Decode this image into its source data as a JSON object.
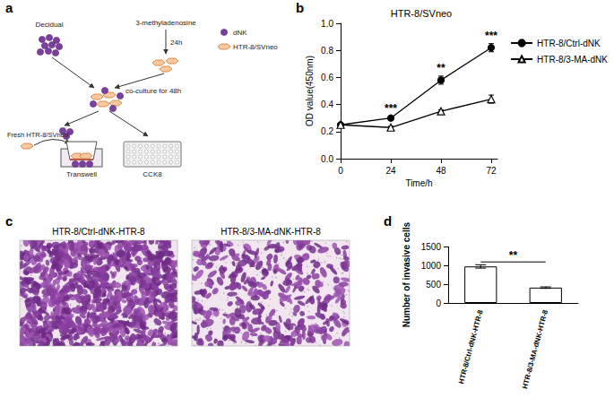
{
  "panel_labels": [
    "a",
    "b",
    "c",
    "d"
  ],
  "diagram": {
    "decidual": "Decidual",
    "drug": "3-methyladenosine",
    "drug_time": "24h",
    "coculture": "co-culture for 48h",
    "fresh": "Fresh HTR-8/SVneo",
    "transwell": "Transwell",
    "cck8": "CCK8",
    "legend": [
      "dNK",
      "HTR-8/SVneo"
    ]
  },
  "images": [
    {
      "title": "HTR-8/Ctrl-dNK-HTR-8"
    },
    {
      "title": "HTR-8/3-MA-dNK-HTR-8"
    }
  ],
  "chart_data": [
    {
      "type": "line",
      "title": "HTR-8/SVneo",
      "x_label": "Time/h",
      "y_label": "OD value(450nm)",
      "x": [
        0,
        24,
        48,
        72
      ],
      "series": [
        {
          "name": "HTR-8/Ctrl-dNK",
          "color": "#000000",
          "marker": "circle",
          "values": [
            0.25,
            0.3,
            0.58,
            0.82
          ],
          "errors": [
            0.01,
            0.01,
            0.03,
            0.03
          ]
        },
        {
          "name": "HTR-8/3-MA-dNK",
          "color": "#000000",
          "marker": "triangle-open",
          "values": [
            0.25,
            0.23,
            0.35,
            0.44
          ],
          "errors": [
            0.01,
            0.01,
            0.01,
            0.03
          ]
        }
      ],
      "xlim": [
        0,
        75
      ],
      "xticks": [
        0,
        24,
        48,
        72
      ],
      "ylim": [
        0,
        1
      ],
      "yticks": [
        {
          "value": 0,
          "label": "0.0"
        },
        0.2,
        0.4,
        0.6,
        0.8,
        {
          "value": 1,
          "label": "1.0"
        }
      ],
      "annotations": [
        {
          "x": 24,
          "text": "***"
        },
        {
          "x": 48,
          "text": "**"
        },
        {
          "x": 72,
          "text": "***"
        }
      ],
      "grid": false,
      "legend": "right"
    },
    {
      "type": "bar",
      "y_label": "Number of invasive cells",
      "categories": [
        "HTR-8/Ctrl-dNK-HTR-8",
        "HTR-8/3-MA-dNK-HTR-8"
      ],
      "values": [
        975,
        410
      ],
      "errors": [
        45,
        20
      ],
      "color": "#ffffff",
      "ylim": [
        0,
        1500
      ],
      "yticks": [
        0,
        500,
        1000,
        1500
      ],
      "annotations": [
        {
          "between": [
            "HTR-8/Ctrl-dNK-HTR-8",
            "HTR-8/3-MA-dNK-HTR-8"
          ],
          "text": "**"
        }
      ],
      "grid": false
    }
  ]
}
